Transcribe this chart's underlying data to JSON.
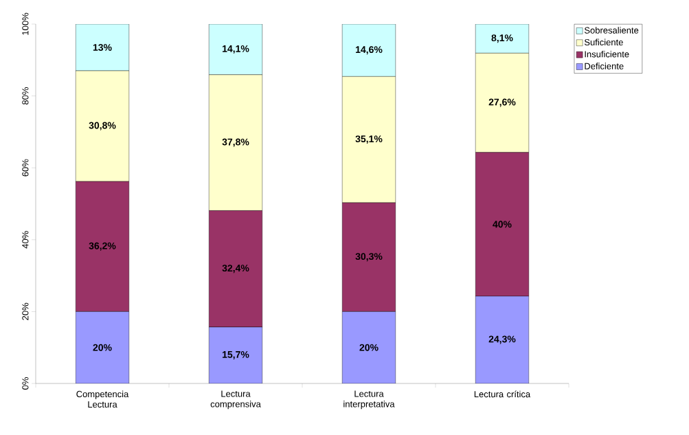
{
  "chart_data": {
    "type": "bar",
    "stacked": true,
    "categories": [
      "Competencia Lectura",
      "Lectura comprensiva",
      "Lectura interpretativa",
      "Lectura crítica"
    ],
    "series": [
      {
        "name": "Deficiente",
        "color": "#9999ff",
        "values": [
          20,
          15.7,
          20,
          24.3
        ],
        "value_labels": [
          "20%",
          "15,7%",
          "20%",
          "24,3%"
        ]
      },
      {
        "name": "Insuficiente",
        "color": "#993366",
        "values": [
          36.2,
          32.4,
          30.3,
          40
        ],
        "value_labels": [
          "36,2%",
          "32,4%",
          "30,3%",
          "40%"
        ]
      },
      {
        "name": "Suficiente",
        "color": "#ffffcc",
        "values": [
          30.8,
          37.8,
          35.1,
          27.6
        ],
        "value_labels": [
          "30,8%",
          "37,8%",
          "35,1%",
          "27,6%"
        ]
      },
      {
        "name": "Sobresaliente",
        "color": "#ccffff",
        "values": [
          13,
          14.1,
          14.6,
          8.1
        ],
        "value_labels": [
          "13%",
          "14,1%",
          "14,6%",
          "8,1%"
        ]
      }
    ],
    "ylim": [
      0,
      100
    ],
    "yticks": [
      {
        "value": 0,
        "label": "0%"
      },
      {
        "value": 20,
        "label": "20%"
      },
      {
        "value": 40,
        "label": "40%"
      },
      {
        "value": 60,
        "label": "60%"
      },
      {
        "value": 80,
        "label": "80%"
      },
      {
        "value": 100,
        "label": "100%"
      }
    ],
    "grid": false,
    "legend": "top right"
  }
}
